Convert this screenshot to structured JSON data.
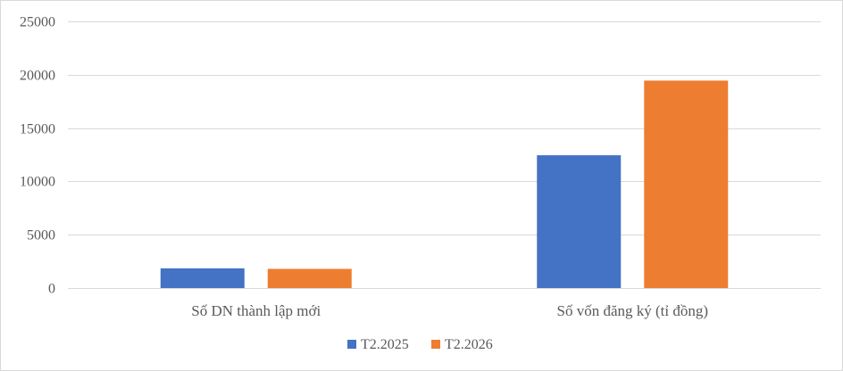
{
  "chart_data": {
    "type": "bar",
    "categories": [
      "Số DN thành lập mới",
      "Số vốn đăng ký (tỉ đồng)"
    ],
    "series": [
      {
        "name": "T2.2025",
        "color": "#4472c4",
        "values": [
          1850,
          12450
        ]
      },
      {
        "name": "T2.2026",
        "color": "#ed7d31",
        "values": [
          1800,
          19450
        ]
      }
    ],
    "ylim": [
      0,
      25000
    ],
    "yticks": [
      0,
      5000,
      10000,
      15000,
      20000,
      25000
    ],
    "grid": true,
    "legend_position": "bottom"
  }
}
